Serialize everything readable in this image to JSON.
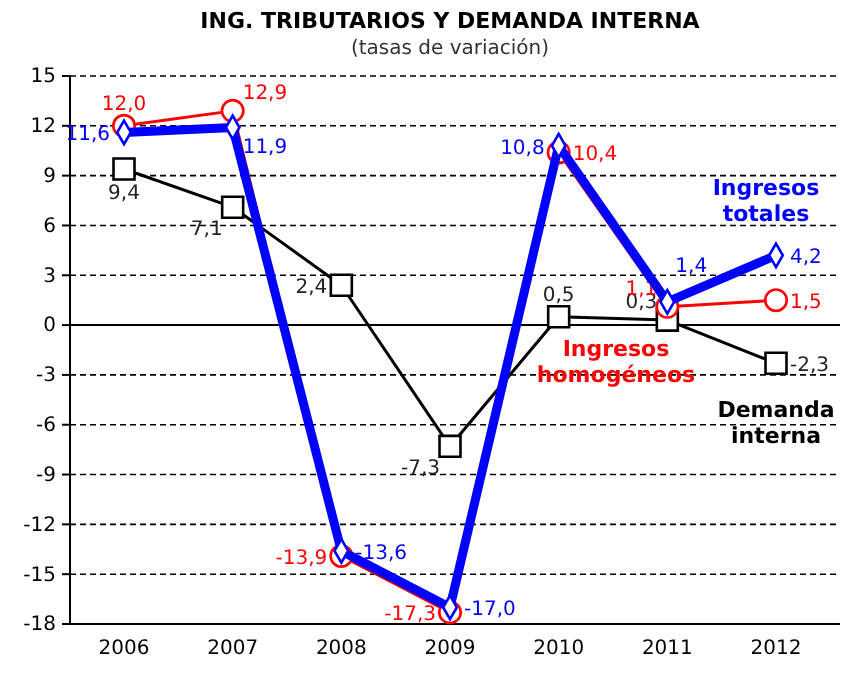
{
  "chart_data": {
    "type": "line",
    "title": "ING. TRIBUTARIOS Y DEMANDA INTERNA",
    "subtitle": "(tasas de variación)",
    "categories": [
      "2006",
      "2007",
      "2008",
      "2009",
      "2010",
      "2011",
      "2012"
    ],
    "series": [
      {
        "name": "Demanda interna",
        "color": "#000000",
        "marker": "square",
        "values": [
          9.4,
          7.1,
          2.4,
          -7.3,
          0.5,
          0.3,
          -2.3
        ],
        "value_labels": [
          "9,4",
          "7,1",
          "2,4",
          "-7,3",
          "0,5",
          "0,3",
          "-2,3"
        ]
      },
      {
        "name": "Ingresos homogéneos",
        "color": "#ff0000",
        "marker": "circle",
        "values": [
          12.0,
          12.9,
          -13.9,
          -17.3,
          10.4,
          1.1,
          1.5
        ],
        "value_labels": [
          "12,0",
          "12,9",
          "-13,9",
          "-17,3",
          "10,4",
          "1,1",
          "1,5"
        ]
      },
      {
        "name": "Ingresos totales",
        "color": "#0000ff",
        "marker": "diamond",
        "values": [
          11.6,
          11.9,
          -13.6,
          -17.0,
          10.8,
          1.4,
          4.2
        ],
        "value_labels": [
          "11,6",
          "11,9",
          "-13,6",
          "-17,0",
          "10,8",
          "1,4",
          "4,2"
        ]
      }
    ],
    "ylim": [
      -18,
      15
    ],
    "yticks": [
      -18,
      -15,
      -12,
      -9,
      -6,
      -3,
      0,
      3,
      6,
      9,
      12,
      15
    ],
    "grid": "y",
    "legend": false
  }
}
